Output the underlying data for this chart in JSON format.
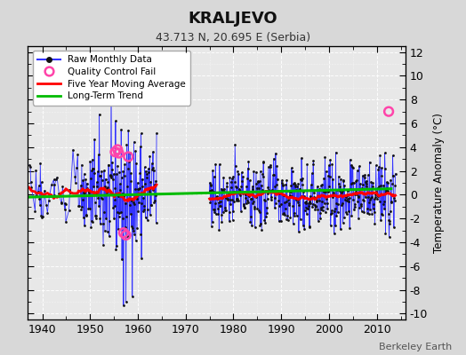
{
  "title": "KRALJEVO",
  "subtitle": "43.713 N, 20.695 E (Serbia)",
  "ylabel": "Temperature Anomaly (°C)",
  "credit": "Berkeley Earth",
  "xlim": [
    1937,
    2016
  ],
  "ylim": [
    -10.5,
    12.5
  ],
  "yticks": [
    -10,
    -8,
    -6,
    -4,
    -2,
    0,
    2,
    4,
    6,
    8,
    10,
    12
  ],
  "xticks": [
    1940,
    1950,
    1960,
    1970,
    1980,
    1990,
    2000,
    2010
  ],
  "bg_color": "#d8d8d8",
  "plot_bg_color": "#e8e8e8",
  "grid_color": "#ffffff",
  "raw_line_color": "#3333ff",
  "raw_dot_color": "#111111",
  "moving_avg_color": "#ff0000",
  "trend_color": "#00bb00",
  "qc_fail_color": "#ff44aa",
  "qc_fail_times_p1": [
    1955.25,
    1955.75,
    1956.0,
    1957.0,
    1957.5,
    1958.0
  ],
  "qc_fail_vals_p1": [
    3.6,
    3.8,
    3.5,
    -3.2,
    -3.4,
    3.2
  ],
  "qc_fail_times_p2": [
    2012.5
  ],
  "qc_fail_vals_p2": [
    7.0
  ],
  "gap_start": 1964,
  "gap_end": 1975,
  "data1_start": 1937,
  "data1_end": 1964,
  "data2_start": 1975,
  "data2_end": 2014,
  "early_sparse_end": 1947,
  "spike_time": 1957.0,
  "spike_val": -9.3,
  "spike2_time": 1957.5,
  "spike2_val": -9.0,
  "trend_x": [
    1937,
    2013
  ],
  "trend_y": [
    -0.2,
    0.5
  ],
  "figsize": [
    5.24,
    4.0
  ],
  "dpi": 100
}
